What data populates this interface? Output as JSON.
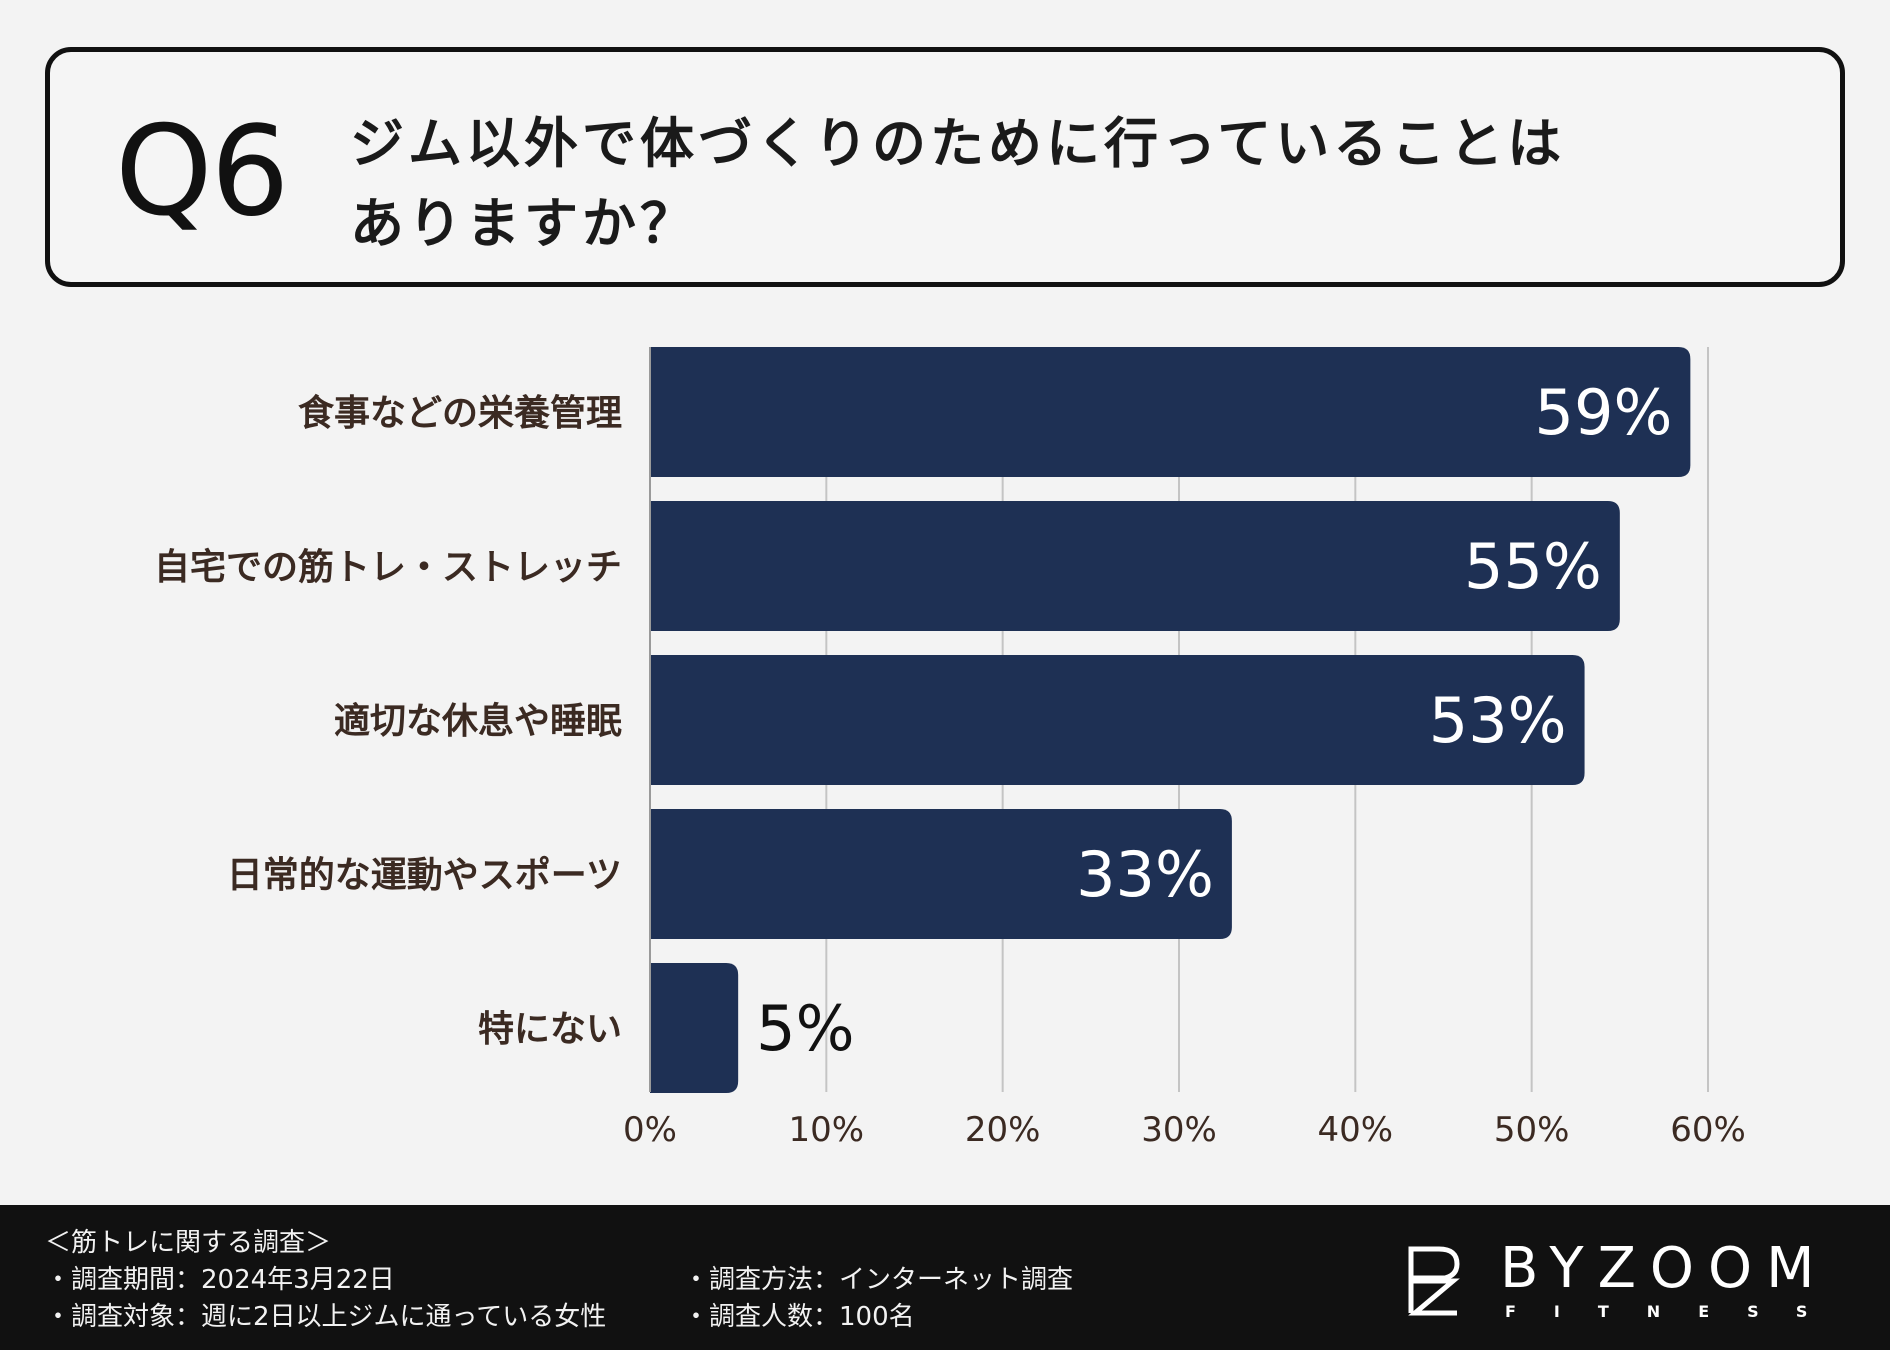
{
  "question": {
    "number": "Q6",
    "line1": "ジム以外で体づくりのために行っていることは",
    "line2": "ありますか？"
  },
  "chart_data": {
    "type": "bar",
    "orientation": "horizontal",
    "categories": [
      "食事などの栄養管理",
      "自宅での筋トレ・ストレッチ",
      "適切な休息や睡眠",
      "日常的な運動やスポーツ",
      "特にない"
    ],
    "values": [
      59,
      55,
      53,
      33,
      5
    ],
    "value_labels": [
      "59%",
      "55%",
      "53%",
      "33%",
      "5%"
    ],
    "xlim": [
      0,
      60
    ],
    "ticks": [
      0,
      10,
      20,
      30,
      40,
      50,
      60
    ],
    "tick_labels": [
      "0%",
      "10%",
      "20%",
      "30%",
      "40%",
      "50%",
      "60%"
    ],
    "grid": true,
    "bar_color": "#1e3054"
  },
  "footer": {
    "survey_title": "＜筋トレに関する調査＞",
    "period": "・調査期間：2024年3月22日",
    "target": "・調査対象：週に2日以上ジムに通っている女性",
    "method": "・調査方法：インターネット調査",
    "count": "・調査人数：100名"
  },
  "logo": {
    "name": "BYZOOM",
    "sub": "FITNESS"
  }
}
